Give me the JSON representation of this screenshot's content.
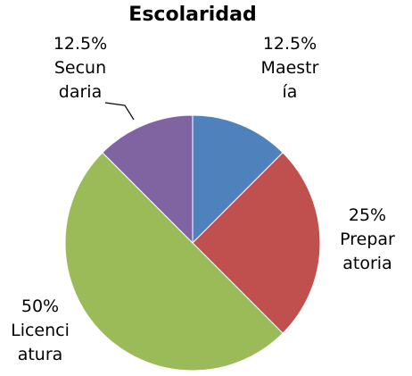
{
  "chart_data": {
    "type": "pie",
    "title": "Escolaridad",
    "categories": [
      "Maestría",
      "Preparatoria",
      "Licenciatura",
      "Secundaria"
    ],
    "values": [
      12.5,
      25,
      50,
      12.5
    ],
    "value_labels": [
      "12.5%",
      "25%",
      "50%",
      "12.5%"
    ],
    "colors": [
      "#4f81bd",
      "#c0504d",
      "#9bbb59",
      "#8064a2"
    ]
  }
}
